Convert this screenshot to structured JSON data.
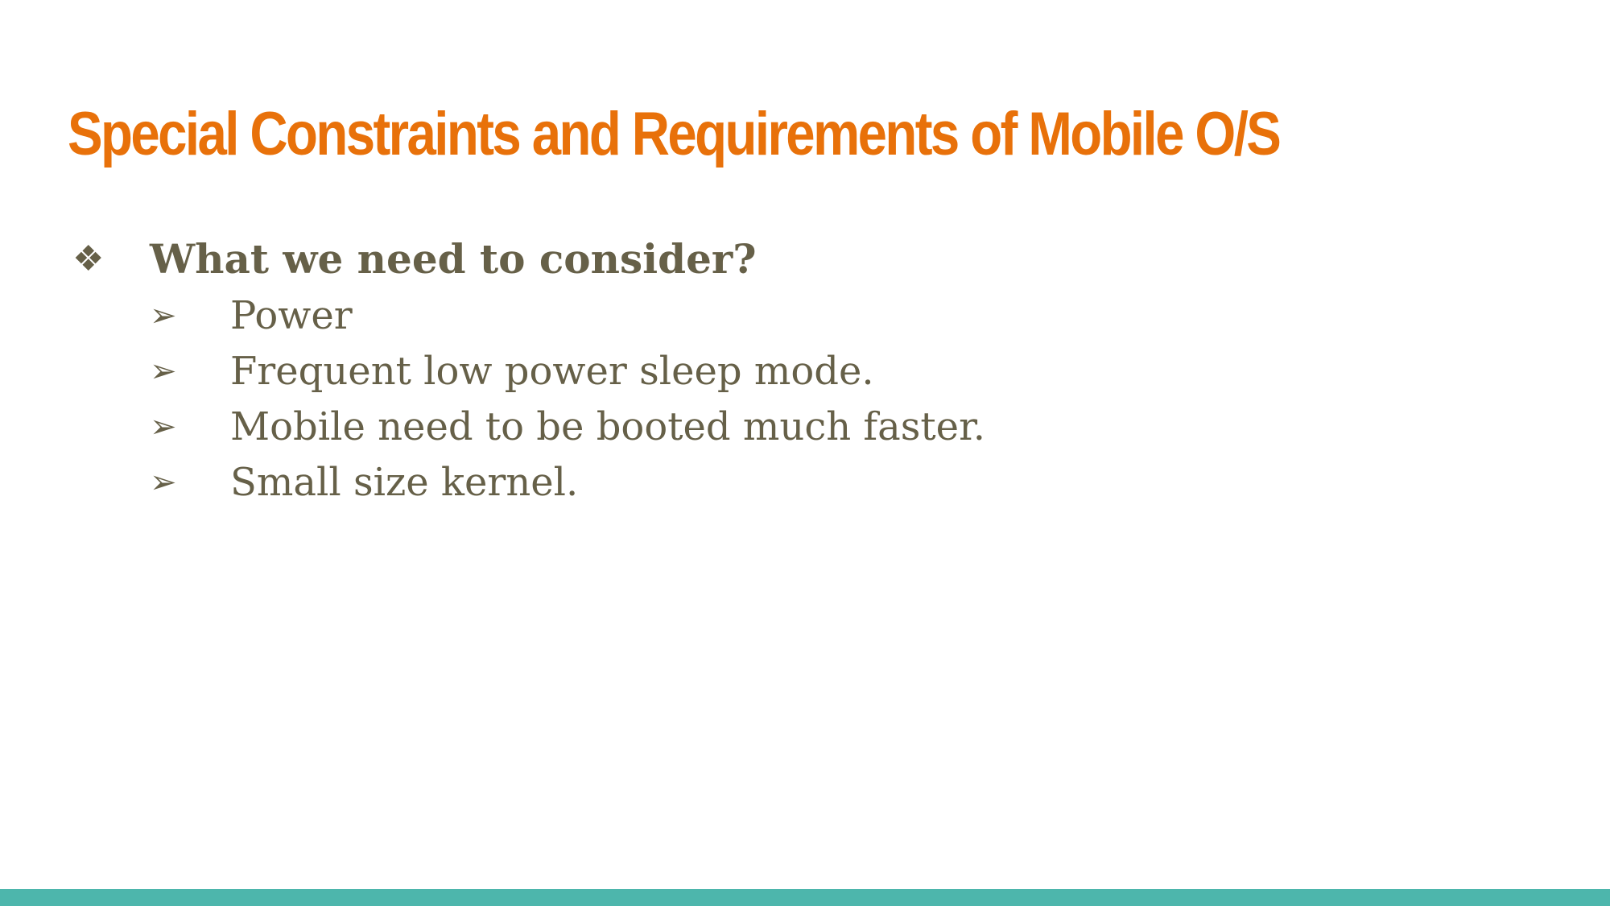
{
  "colors": {
    "title": "#E8710A",
    "body_text": "#666048",
    "bottom_bar": "#4DB6AC",
    "background": "#FFFFFF"
  },
  "slide": {
    "title": "Special Constraints and Requirements of Mobile O/S",
    "bullet": {
      "marker_icon": "diamond-bullet-icon",
      "marker": "❖",
      "text": "What we need to consider?"
    },
    "sub_marker_icon": "arrowhead-bullet-icon",
    "sub_marker": "➢",
    "sub_items": [
      "Power",
      "Frequent low power sleep mode.",
      "Mobile need to be booted much faster.",
      "Small size kernel."
    ]
  }
}
